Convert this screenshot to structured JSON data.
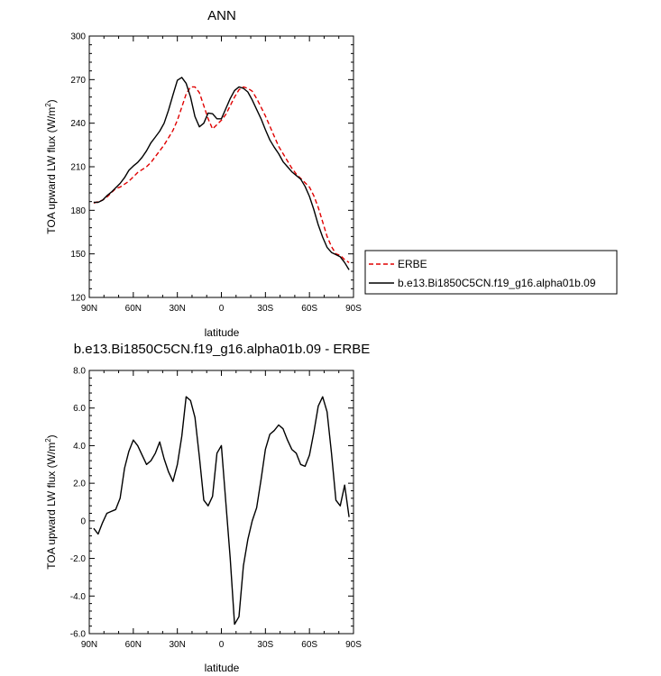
{
  "chart_data": [
    {
      "type": "line",
      "title": "ANN",
      "xlabel": "latitude",
      "ylabel": "TOA upward LW flux (W/m",
      "ylabel_sup": "2",
      "ylabel_close": ")",
      "xlim": [
        90,
        -90
      ],
      "ylim": [
        120,
        300
      ],
      "x_ticks": [
        90,
        60,
        30,
        0,
        -30,
        -60,
        -90
      ],
      "x_tick_labels": [
        "90N",
        "60N",
        "30N",
        "0",
        "30S",
        "60S",
        "90S"
      ],
      "y_ticks": [
        120,
        150,
        180,
        210,
        240,
        270,
        300
      ],
      "y_tick_labels": [
        "120",
        "150",
        "180",
        "210",
        "240",
        "270",
        "300"
      ],
      "legend_position": "right",
      "series": [
        {
          "name": "ERBE",
          "color": "#e00000",
          "dash": "dashed",
          "x": [
            87,
            84,
            81,
            78,
            75,
            72,
            69,
            66,
            63,
            60,
            57,
            54,
            51,
            48,
            45,
            42,
            39,
            36,
            33,
            30,
            27,
            24,
            21,
            18,
            15,
            12,
            9,
            6,
            3,
            0,
            -3,
            -6,
            -9,
            -12,
            -15,
            -18,
            -21,
            -24,
            -27,
            -30,
            -33,
            -36,
            -39,
            -42,
            -45,
            -48,
            -51,
            -54,
            -57,
            -60,
            -63,
            -66,
            -69,
            -72,
            -75,
            -78,
            -81,
            -84,
            -87
          ],
          "values": [
            185,
            186,
            187,
            189,
            192,
            195,
            196,
            198,
            200,
            203,
            206,
            208,
            210,
            213,
            217,
            221,
            225,
            230,
            235,
            242,
            251,
            260,
            265,
            265,
            261,
            252,
            243,
            236,
            239,
            242,
            246,
            252,
            258,
            263,
            265,
            264,
            262,
            257,
            251,
            245,
            238,
            231,
            224,
            219,
            214,
            209,
            205,
            202,
            199,
            196,
            190,
            182,
            172,
            162,
            155,
            150,
            149,
            146,
            144
          ]
        },
        {
          "name": "b.e13.Bi1850C5CN.f19_g16.alpha01b.09",
          "color": "#000000",
          "dash": "solid",
          "x": [
            87,
            84,
            81,
            78,
            75,
            72,
            69,
            66,
            63,
            60,
            57,
            54,
            51,
            48,
            45,
            42,
            39,
            36,
            33,
            30,
            27,
            24,
            21,
            18,
            15,
            12,
            9,
            6,
            3,
            0,
            -3,
            -6,
            -9,
            -12,
            -15,
            -18,
            -21,
            -24,
            -27,
            -30,
            -33,
            -36,
            -39,
            -42,
            -45,
            -48,
            -51,
            -54,
            -57,
            -60,
            -63,
            -66,
            -69,
            -72,
            -75,
            -78,
            -81,
            -84,
            -87
          ],
          "values": [
            185.5,
            185.5,
            187,
            190,
            192.5,
            195.5,
            198.5,
            202.5,
            207.5,
            210.5,
            213,
            216.5,
            221,
            226.5,
            230.5,
            234.5,
            240,
            249,
            259.5,
            269.5,
            271.5,
            267.5,
            258,
            244.5,
            237.5,
            240,
            247,
            246.5,
            243,
            243,
            250,
            257,
            262.5,
            265,
            264,
            261.5,
            256,
            249.5,
            243,
            235.5,
            228.5,
            223.5,
            219,
            213.5,
            210,
            206.5,
            204,
            201.5,
            196.5,
            189.5,
            180.5,
            170,
            161.5,
            154.5,
            151,
            149.5,
            148,
            144,
            139
          ]
        }
      ]
    },
    {
      "type": "line",
      "title": "b.e13.Bi1850C5CN.f19_g16.alpha01b.09 - ERBE",
      "xlabel": "latitude",
      "ylabel": "TOA upward LW flux (W/m",
      "ylabel_sup": "2",
      "ylabel_close": ")",
      "xlim": [
        90,
        -90
      ],
      "ylim": [
        -6,
        8
      ],
      "x_ticks": [
        90,
        60,
        30,
        0,
        -30,
        -60,
        -90
      ],
      "x_tick_labels": [
        "90N",
        "60N",
        "30N",
        "0",
        "30S",
        "60S",
        "90S"
      ],
      "y_ticks": [
        -6,
        -4,
        -2,
        0,
        2,
        4,
        6,
        8
      ],
      "y_tick_labels": [
        "-6.0",
        "-4.0",
        "-2.0",
        "0",
        "2.0",
        "4.0",
        "6.0",
        "8.0"
      ],
      "series": [
        {
          "name": "",
          "color": "#000000",
          "dash": "solid",
          "x": [
            87,
            84,
            81,
            78,
            75,
            72,
            69,
            66,
            63,
            60,
            57,
            54,
            51,
            48,
            45,
            42,
            39,
            36,
            33,
            30,
            27,
            24,
            21,
            18,
            15,
            12,
            9,
            6,
            3,
            0,
            -3,
            -6,
            -9,
            -12,
            -15,
            -18,
            -21,
            -24,
            -27,
            -30,
            -33,
            -36,
            -39,
            -42,
            -45,
            -48,
            -51,
            -54,
            -57,
            -60,
            -63,
            -66,
            -69,
            -72,
            -75,
            -78,
            -81,
            -84,
            -87
          ],
          "values": [
            -0.4,
            -0.7,
            -0.1,
            0.4,
            0.5,
            0.6,
            1.2,
            2.8,
            3.7,
            4.3,
            4.0,
            3.5,
            3.0,
            3.2,
            3.6,
            4.2,
            3.3,
            2.6,
            2.1,
            3.0,
            4.5,
            6.6,
            6.4,
            5.5,
            3.4,
            1.1,
            0.8,
            1.3,
            3.6,
            4.0,
            1.0,
            -2.0,
            -5.5,
            -5.1,
            -2.4,
            -1.0,
            0.0,
            0.7,
            2.2,
            3.8,
            4.6,
            4.8,
            5.1,
            4.9,
            4.3,
            3.8,
            3.6,
            3.0,
            2.9,
            3.5,
            4.7,
            6.1,
            6.6,
            5.8,
            3.6,
            1.1,
            0.8,
            1.9,
            0.2
          ]
        }
      ]
    }
  ]
}
